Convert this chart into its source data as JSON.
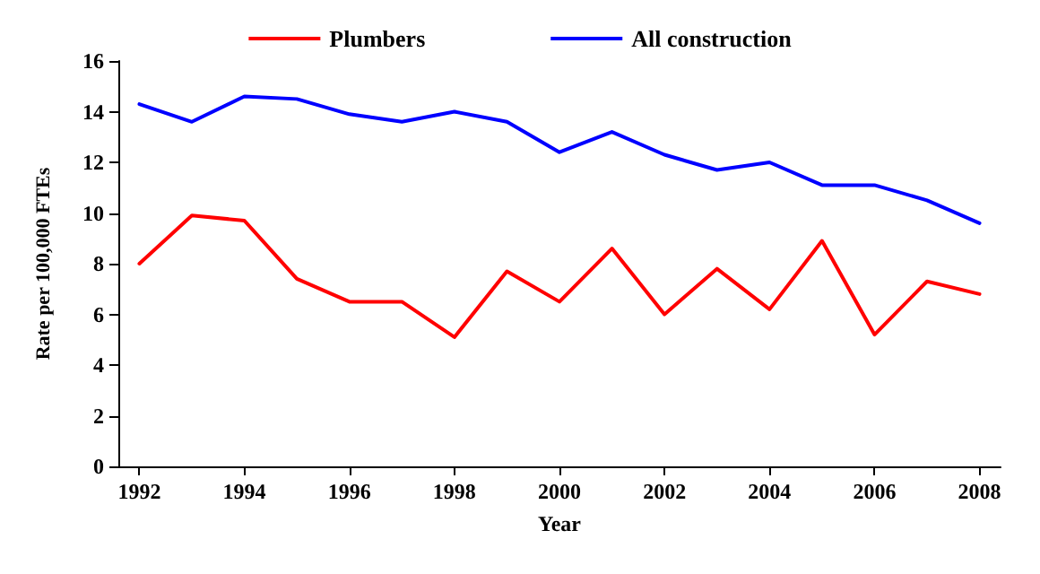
{
  "chart_data": {
    "type": "line",
    "xlabel": "Year",
    "ylabel": "Rate per 100,000 FTEs",
    "x": [
      1992,
      1993,
      1994,
      1995,
      1996,
      1997,
      1998,
      1999,
      2000,
      2001,
      2002,
      2003,
      2004,
      2005,
      2006,
      2007,
      2008
    ],
    "series": [
      {
        "name": "Plumbers",
        "color": "#ff0000",
        "values": [
          8.0,
          9.9,
          9.7,
          7.4,
          6.5,
          6.5,
          5.1,
          7.7,
          6.5,
          8.6,
          6.0,
          7.8,
          6.2,
          8.9,
          5.2,
          7.3,
          6.8
        ]
      },
      {
        "name": "All construction",
        "color": "#0000ff",
        "values": [
          14.3,
          13.6,
          14.6,
          14.5,
          13.9,
          13.6,
          14.0,
          13.6,
          12.4,
          13.2,
          12.3,
          11.7,
          12.0,
          11.1,
          11.1,
          10.5,
          9.6
        ]
      }
    ],
    "xlim": [
      1991.6,
      2008.4
    ],
    "xticks": [
      1992,
      1994,
      1996,
      1998,
      2000,
      2002,
      2004,
      2006,
      2008
    ],
    "ylim": [
      0,
      16
    ],
    "yticks": [
      0,
      2,
      4,
      6,
      8,
      10,
      12,
      14,
      16
    ],
    "grid": false,
    "legend": "top",
    "marker": "none",
    "line_style": "solid"
  }
}
